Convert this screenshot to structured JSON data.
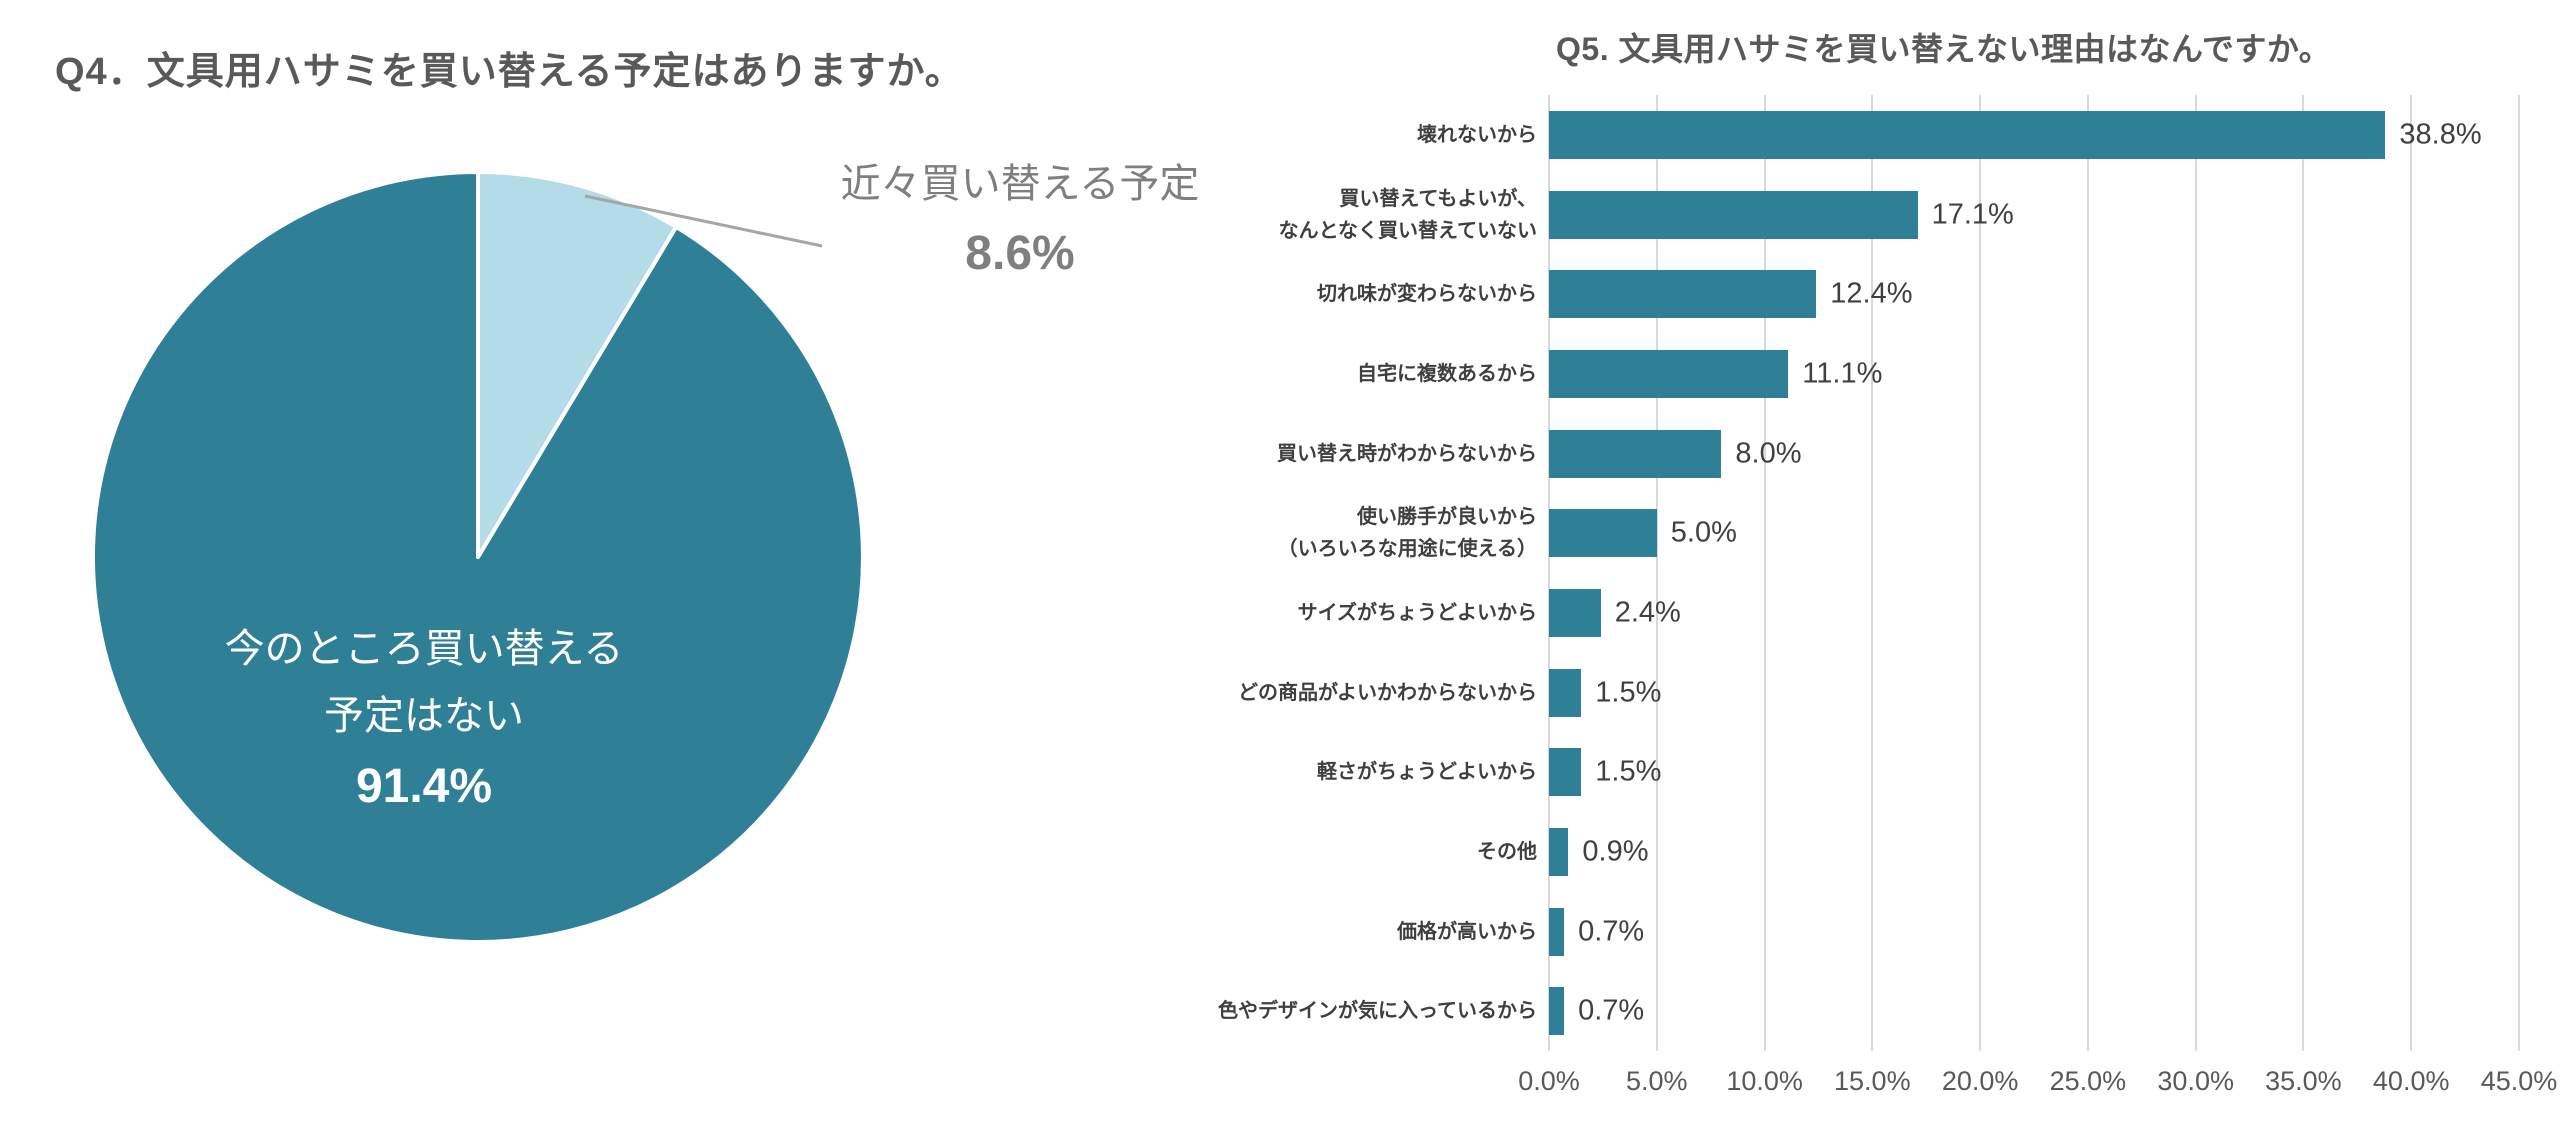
{
  "colors": {
    "teal": "#2F8096",
    "light_blue": "#B4DBE8",
    "title_gray": "#595959",
    "category_label": "#3F3F3F",
    "value_label": "#404040",
    "tick_label": "#595959",
    "gridline": "#D9D9D9",
    "leader_line": "#A6A6A6",
    "callout_gray": "#7F7F7F",
    "inside_label_white": "#FFFFFF",
    "background": "#FFFFFF"
  },
  "chart_data": [
    {
      "type": "pie",
      "title": "Q4．文具用ハサミを買い替える予定はありますか。",
      "legend": "none",
      "start_angle_deg": 0,
      "clockwise": true,
      "slices": [
        {
          "label": "今のところ買い替える予定はない",
          "label_lines": [
            "今のところ買い替える",
            "予定はない"
          ],
          "pct_label": "91.4%",
          "value": 91.4,
          "color": "#2F8096",
          "label_position": "inside"
        },
        {
          "label": "近々買い替える予定",
          "pct_label": "8.6%",
          "value": 8.6,
          "color": "#B4DBE8",
          "label_position": "callout"
        }
      ]
    },
    {
      "type": "bar",
      "orientation": "horizontal",
      "title": "Q5. 文具用ハサミを買い替えない理由はなんですか。",
      "grid": true,
      "xlim": [
        0,
        45
      ],
      "categories": [
        {
          "lines": [
            "壊れないから"
          ]
        },
        {
          "lines": [
            "買い替えてもよいが、",
            "なんとなく買い替えていない"
          ]
        },
        {
          "lines": [
            "切れ味が変わらないから"
          ]
        },
        {
          "lines": [
            "自宅に複数あるから"
          ]
        },
        {
          "lines": [
            "買い替え時がわからないから"
          ]
        },
        {
          "lines": [
            "使い勝手が良いから",
            "（いろいろな用途に使える）"
          ]
        },
        {
          "lines": [
            "サイズがちょうどよいから"
          ]
        },
        {
          "lines": [
            "どの商品がよいかわからないから"
          ]
        },
        {
          "lines": [
            "軽さがちょうどよいから"
          ]
        },
        {
          "lines": [
            "その他"
          ]
        },
        {
          "lines": [
            "価格が高いから"
          ]
        },
        {
          "lines": [
            "色やデザインが気に入っているから"
          ]
        }
      ],
      "values": [
        38.8,
        17.1,
        12.4,
        11.1,
        8.0,
        5.0,
        2.4,
        1.5,
        1.5,
        0.9,
        0.7,
        0.7
      ],
      "value_labels": [
        "38.8%",
        "17.1%",
        "12.4%",
        "11.1%",
        "8.0%",
        "5.0%",
        "2.4%",
        "1.5%",
        "1.5%",
        "0.9%",
        "0.7%",
        "0.7%"
      ],
      "x_ticks": [
        {
          "v": 0,
          "label": "0.0%"
        },
        {
          "v": 5,
          "label": "5.0%"
        },
        {
          "v": 10,
          "label": "10.0%"
        },
        {
          "v": 15,
          "label": "15.0%"
        },
        {
          "v": 20,
          "label": "20.0%"
        },
        {
          "v": 25,
          "label": "25.0%"
        },
        {
          "v": 30,
          "label": "30.0%"
        },
        {
          "v": 35,
          "label": "35.0%"
        },
        {
          "v": 40,
          "label": "40.0%"
        },
        {
          "v": 45,
          "label": "45.0%"
        }
      ]
    }
  ]
}
